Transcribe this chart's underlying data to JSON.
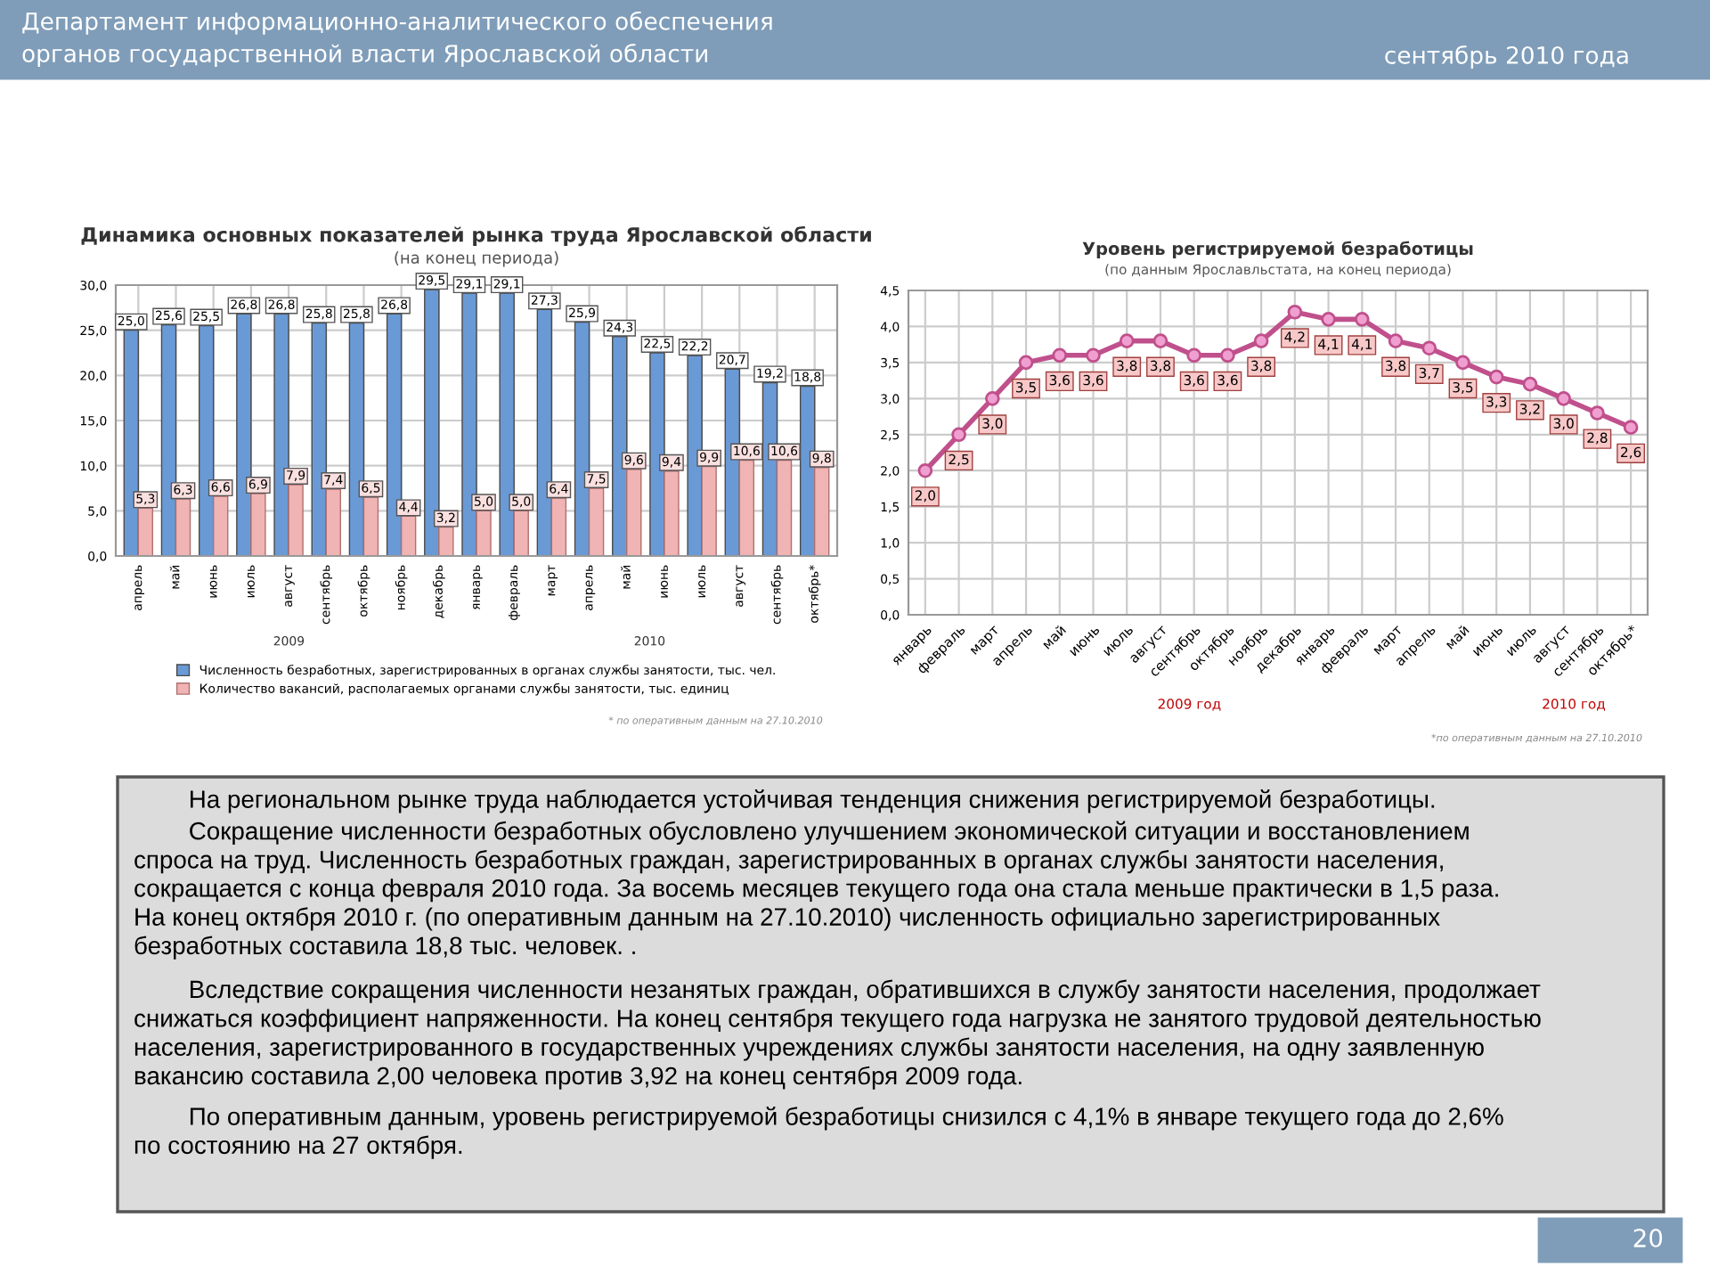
{
  "chart_data": [
    {
      "type": "bar",
      "title": "Динамика основных показателей рынка труда Ярославской области",
      "subtitle": "(на конец периода)",
      "categories": [
        "апрель",
        "май",
        "июнь",
        "июль",
        "август",
        "сентябрь",
        "октябрь",
        "ноябрь",
        "декабрь",
        "январь",
        "февраль",
        "март",
        "апрель",
        "май",
        "июнь",
        "июль",
        "август",
        "сентябрь",
        "октябрь*"
      ],
      "series": [
        {
          "name": "Численность безработных, зарегистрированных в органах службы занятости, тыс. чел.",
          "color": "#6a9ad6",
          "values": [
            25.0,
            25.6,
            25.5,
            26.8,
            26.8,
            25.8,
            25.8,
            26.8,
            29.5,
            29.1,
            29.1,
            27.3,
            25.9,
            24.3,
            22.5,
            22.2,
            20.7,
            19.2,
            18.8
          ],
          "value_labels": [
            "25,0",
            "25,6",
            "25,5",
            "26,8",
            "26,8",
            "25,8",
            "25,8",
            "26,8",
            "29,5",
            "29,1",
            "29,1",
            "27,3",
            "25,9",
            "24,3",
            "22,5",
            "22,2",
            "20,7",
            "19,2",
            "18,8"
          ]
        },
        {
          "name": "Количество вакансий, располагаемых органами службы занятости, тыс. единиц",
          "color": "#f0b4b4",
          "values": [
            5.3,
            6.3,
            6.6,
            6.9,
            7.9,
            7.4,
            6.5,
            4.4,
            3.2,
            5.0,
            5.0,
            6.4,
            7.5,
            9.6,
            9.4,
            9.9,
            10.6,
            10.6,
            9.8
          ],
          "value_labels": [
            "5,3",
            "6,3",
            "6,6",
            "6,9",
            "7,9",
            "7,4",
            "6,5",
            "4,4",
            "3,2",
            "5,0",
            "5,0",
            "6,4",
            "7,5",
            "9,6",
            "9,4",
            "9,9",
            "10,6",
            "10,6",
            "9,8"
          ]
        }
      ],
      "ylim": [
        0,
        30
      ],
      "yticks": [
        {
          "value": 0,
          "label": "0,0"
        },
        {
          "value": 5,
          "label": "5,0"
        },
        {
          "value": 10,
          "label": "10,0"
        },
        {
          "value": 15,
          "label": "15,0"
        },
        {
          "value": 20,
          "label": "20,0"
        },
        {
          "value": 25,
          "label": "25,0"
        },
        {
          "value": 30,
          "label": "30,0"
        }
      ],
      "grid": true,
      "legend": "bottom",
      "annotations": [
        "2009",
        "2010",
        "* по оперативным данным на 27.10.2010"
      ]
    },
    {
      "type": "line",
      "title": "Уровень регистрируемой безработицы",
      "subtitle": "(по данным Ярославльстата, на конец периода)",
      "categories": [
        "январь",
        "февраль",
        "март",
        "апрель",
        "май",
        "июнь",
        "июль",
        "август",
        "сентябрь",
        "октябрь",
        "ноябрь",
        "декабрь",
        "январь",
        "февраль",
        "март",
        "апрель",
        "май",
        "июнь",
        "июль",
        "август",
        "сентябрь",
        "октябрь*"
      ],
      "series": [
        {
          "color": "#c0508c",
          "values": [
            2.0,
            2.5,
            3.0,
            3.5,
            3.6,
            3.6,
            3.8,
            3.8,
            3.6,
            3.6,
            3.8,
            4.2,
            4.1,
            4.1,
            3.8,
            3.7,
            3.5,
            3.3,
            3.2,
            3.0,
            2.8,
            2.6
          ],
          "value_labels": [
            "2,0",
            "2,5",
            "3,0",
            "3,5",
            "3,6",
            "3,6",
            "3,8",
            "3,8",
            "3,6",
            "3,6",
            "3,8",
            "4,2",
            "4,1",
            "4,1",
            "3,8",
            "3,7",
            "3,5",
            "3,3",
            "3,2",
            "3,0",
            "2,8",
            "2,6"
          ]
        }
      ],
      "ylim": [
        0,
        4.5
      ],
      "yticks": [
        {
          "value": 0,
          "label": "0,0"
        },
        {
          "value": 0.5,
          "label": "0,5"
        },
        {
          "value": 1,
          "label": "1,0"
        },
        {
          "value": 1.5,
          "label": "1,5"
        },
        {
          "value": 2,
          "label": "2,0"
        },
        {
          "value": 2.5,
          "label": "2,5"
        },
        {
          "value": 3,
          "label": "3,0"
        },
        {
          "value": 3.5,
          "label": "3,5"
        },
        {
          "value": 4,
          "label": "4,0"
        },
        {
          "value": 4.5,
          "label": "4,5"
        }
      ],
      "grid": true,
      "marker": "circle",
      "line_style": "solid",
      "annotations": [
        "2009 год",
        "2010 год",
        "*по оперативным данным на 27.10.2010"
      ]
    },
    {
      "type": "other",
      "annotations": [
        "Департамент информационно-аналитического обеспечения\nорганов государственной власти Ярославской области",
        "сентябрь 2010 года",
        "На региональном рынке труда наблюдается устойчивая тенденция снижения регистрируемой безработицы.",
        "Сокращение численности безработных обусловлено улучшением экономической ситуации и восстановлением\nспроса на труд. Численность безработных граждан, зарегистрированных в органах службы занятости населения,\nсокращается с конца февраля 2010 года. За восемь месяцев текущего года она стала меньше практически в 1,5 раза.\nНа конец октября 2010 г. (по оперативным данным на 27.10.2010) численность официально зарегистрированных\nбезработных составила 18,8 тыс. человек. .",
        "Вследствие сокращения численности незанятых граждан, обратившихся в службу занятости населения, продолжает\nснижаться коэффициент напряженности. На конец сентября текущего года нагрузка не занятого трудовой деятельностью\nнаселения, зарегистрированного в государственных учреждениях службы занятости населения, на одну заявленную\nвакансию составила 2,00 человека против 3,92 на конец сентября 2009 года.",
        "По оперативным данным, уровень регистрируемой безработицы снизился с 4,1% в январе текущего года до 2,6%\nпо состоянию на 27 октября.",
        "20"
      ]
    }
  ]
}
